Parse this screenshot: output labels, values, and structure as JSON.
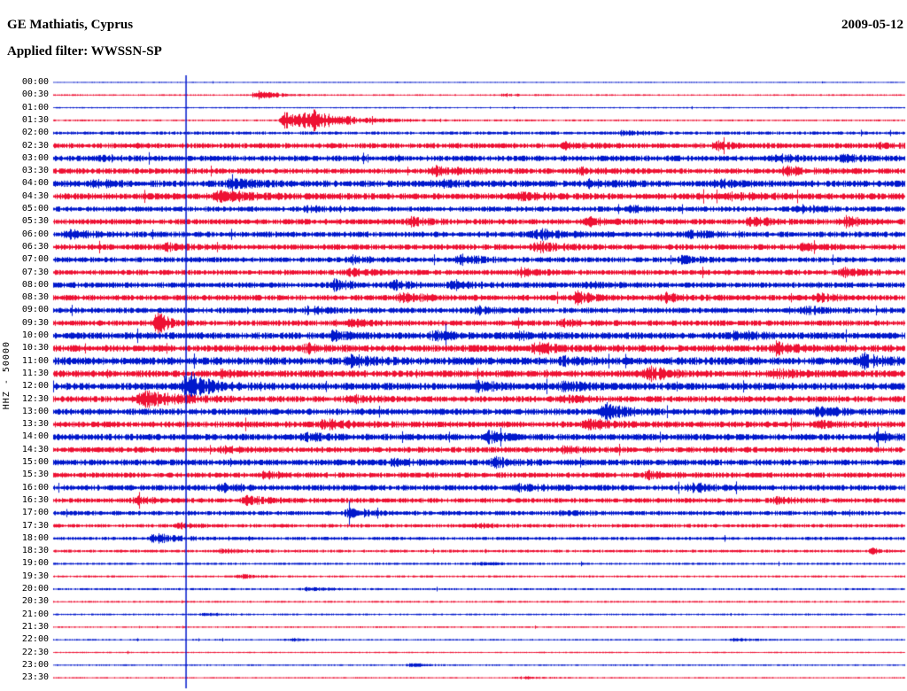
{
  "header": {
    "station_title": "GE Mathiatis, Cyprus",
    "date": "2009-05-12",
    "filter_label": "Applied filter: WWSSN-SP"
  },
  "axis": {
    "left_label": "HHZ - 50000"
  },
  "chart_data": {
    "type": "line",
    "subtype": "helicorder-seismogram",
    "title": "GE Mathiatis, Cyprus — 2009-05-12 — Applied filter: WWSSN-SP",
    "ylabel": "HHZ - 50000",
    "minutes_per_row": 30,
    "time_range": [
      "00:00",
      "23:30"
    ],
    "grid": false,
    "legend": "none",
    "colors": {
      "blue": "#0018cc",
      "red": "#ee1133",
      "marker": "#0018cc",
      "text": "#000000"
    },
    "vertical_marker_fraction": 0.156,
    "rows": [
      {
        "time": "00:00",
        "color": "blue",
        "noise": 0.6,
        "bursts": []
      },
      {
        "time": "00:30",
        "color": "red",
        "noise": 0.8,
        "bursts": [
          [
            0.24,
            5,
            0.012
          ],
          [
            0.53,
            1.5,
            0.01
          ]
        ]
      },
      {
        "time": "01:00",
        "color": "blue",
        "noise": 0.7,
        "bursts": []
      },
      {
        "time": "01:30",
        "color": "red",
        "noise": 0.9,
        "bursts": [
          [
            0.272,
            12,
            0.008
          ],
          [
            0.305,
            10,
            0.025
          ]
        ]
      },
      {
        "time": "02:00",
        "color": "blue",
        "noise": 1.6,
        "bursts": [
          [
            0.67,
            2.5,
            0.012
          ]
        ]
      },
      {
        "time": "02:30",
        "color": "red",
        "noise": 2.6,
        "bursts": [
          [
            0.6,
            3,
            0.012
          ],
          [
            0.78,
            3.5,
            0.012
          ],
          [
            0.97,
            2,
            0.01
          ]
        ]
      },
      {
        "time": "03:00",
        "color": "blue",
        "noise": 2.8,
        "bursts": [
          [
            0.06,
            2,
            0.012
          ],
          [
            0.85,
            3,
            0.012
          ],
          [
            0.93,
            3,
            0.012
          ]
        ]
      },
      {
        "time": "03:30",
        "color": "red",
        "noise": 2.8,
        "bursts": [
          [
            0.45,
            4,
            0.015
          ],
          [
            0.62,
            3,
            0.012
          ],
          [
            0.86,
            4,
            0.012
          ]
        ]
      },
      {
        "time": "04:00",
        "color": "blue",
        "noise": 3.2,
        "bursts": [
          [
            0.05,
            3,
            0.012
          ],
          [
            0.21,
            4,
            0.015
          ],
          [
            0.45,
            3,
            0.012
          ],
          [
            0.63,
            3,
            0.012
          ],
          [
            0.78,
            3,
            0.012
          ]
        ]
      },
      {
        "time": "04:30",
        "color": "red",
        "noise": 3.2,
        "bursts": [
          [
            0.2,
            5,
            0.02
          ],
          [
            0.55,
            3,
            0.012
          ],
          [
            0.8,
            4,
            0.012
          ]
        ]
      },
      {
        "time": "05:00",
        "color": "blue",
        "noise": 2.6,
        "bursts": [
          [
            0.3,
            2,
            0.012
          ],
          [
            0.68,
            3,
            0.012
          ],
          [
            0.88,
            3,
            0.012
          ]
        ]
      },
      {
        "time": "05:30",
        "color": "red",
        "noise": 2.8,
        "bursts": [
          [
            0.42,
            4,
            0.012
          ],
          [
            0.63,
            3,
            0.012
          ],
          [
            0.82,
            4,
            0.012
          ],
          [
            0.93,
            4,
            0.012
          ]
        ]
      },
      {
        "time": "06:00",
        "color": "blue",
        "noise": 2.8,
        "bursts": [
          [
            0.02,
            4,
            0.012
          ],
          [
            0.57,
            5,
            0.015
          ],
          [
            0.75,
            3,
            0.012
          ]
        ]
      },
      {
        "time": "06:30",
        "color": "red",
        "noise": 2.8,
        "bursts": [
          [
            0.13,
            3,
            0.012
          ],
          [
            0.57,
            4,
            0.015
          ],
          [
            0.88,
            3,
            0.012
          ]
        ]
      },
      {
        "time": "07:00",
        "color": "blue",
        "noise": 2.6,
        "bursts": [
          [
            0.35,
            5,
            0.008
          ],
          [
            0.48,
            4,
            0.012
          ],
          [
            0.74,
            3,
            0.012
          ]
        ]
      },
      {
        "time": "07:30",
        "color": "red",
        "noise": 2.6,
        "bursts": [
          [
            0.35,
            3,
            0.012
          ],
          [
            0.55,
            3,
            0.012
          ],
          [
            0.93,
            4,
            0.012
          ]
        ]
      },
      {
        "time": "08:00",
        "color": "blue",
        "noise": 2.8,
        "bursts": [
          [
            0.33,
            6,
            0.008
          ],
          [
            0.4,
            4,
            0.012
          ],
          [
            0.47,
            4,
            0.012
          ],
          [
            0.63,
            3,
            0.012
          ]
        ]
      },
      {
        "time": "08:30",
        "color": "red",
        "noise": 2.8,
        "bursts": [
          [
            0.41,
            5,
            0.012
          ],
          [
            0.615,
            7,
            0.008
          ],
          [
            0.72,
            4,
            0.012
          ],
          [
            0.9,
            3,
            0.012
          ]
        ]
      },
      {
        "time": "09:00",
        "color": "blue",
        "noise": 2.8,
        "bursts": [
          [
            0.3,
            3,
            0.012
          ],
          [
            0.5,
            3,
            0.012
          ],
          [
            0.88,
            4,
            0.012
          ]
        ]
      },
      {
        "time": "09:30",
        "color": "red",
        "noise": 2.8,
        "bursts": [
          [
            0.122,
            13,
            0.006
          ],
          [
            0.35,
            3,
            0.012
          ],
          [
            0.6,
            3,
            0.012
          ]
        ]
      },
      {
        "time": "10:00",
        "color": "blue",
        "noise": 3.4,
        "bursts": [
          [
            0.33,
            4,
            0.012
          ],
          [
            0.45,
            4,
            0.012
          ],
          [
            0.55,
            3,
            0.012
          ],
          [
            0.8,
            4,
            0.012
          ]
        ]
      },
      {
        "time": "10:30",
        "color": "red",
        "noise": 3.4,
        "bursts": [
          [
            0.3,
            3,
            0.012
          ],
          [
            0.57,
            5,
            0.012
          ],
          [
            0.85,
            5,
            0.012
          ]
        ]
      },
      {
        "time": "11:00",
        "color": "blue",
        "noise": 3.8,
        "bursts": [
          [
            0.35,
            5,
            0.012
          ],
          [
            0.6,
            3,
            0.012
          ],
          [
            0.95,
            6,
            0.012
          ]
        ]
      },
      {
        "time": "11:30",
        "color": "red",
        "noise": 3.4,
        "bursts": [
          [
            0.2,
            3,
            0.012
          ],
          [
            0.7,
            6,
            0.012
          ],
          [
            0.85,
            3,
            0.012
          ]
        ]
      },
      {
        "time": "12:00",
        "color": "blue",
        "noise": 3.6,
        "bursts": [
          [
            0.158,
            14,
            0.012
          ],
          [
            0.5,
            4,
            0.012
          ],
          [
            0.6,
            4,
            0.012
          ]
        ]
      },
      {
        "time": "12:30",
        "color": "red",
        "noise": 3.0,
        "bursts": [
          [
            0.11,
            7,
            0.02
          ],
          [
            0.35,
            3,
            0.012
          ],
          [
            0.6,
            3,
            0.012
          ]
        ]
      },
      {
        "time": "13:00",
        "color": "blue",
        "noise": 3.2,
        "bursts": [
          [
            0.65,
            8,
            0.012
          ],
          [
            0.9,
            4,
            0.012
          ]
        ]
      },
      {
        "time": "13:30",
        "color": "red",
        "noise": 3.0,
        "bursts": [
          [
            0.32,
            5,
            0.012
          ],
          [
            0.63,
            5,
            0.012
          ],
          [
            0.9,
            3,
            0.012
          ]
        ]
      },
      {
        "time": "14:00",
        "color": "blue",
        "noise": 3.2,
        "bursts": [
          [
            0.3,
            3,
            0.012
          ],
          [
            0.51,
            8,
            0.006
          ],
          [
            0.97,
            4,
            0.012
          ]
        ]
      },
      {
        "time": "14:30",
        "color": "red",
        "noise": 2.8,
        "bursts": [
          [
            0.2,
            2,
            0.012
          ],
          [
            0.6,
            3,
            0.012
          ]
        ]
      },
      {
        "time": "15:00",
        "color": "blue",
        "noise": 3.0,
        "bursts": [
          [
            0.4,
            3,
            0.012
          ],
          [
            0.52,
            4,
            0.012
          ]
        ]
      },
      {
        "time": "15:30",
        "color": "red",
        "noise": 2.6,
        "bursts": [
          [
            0.25,
            3,
            0.012
          ],
          [
            0.7,
            3,
            0.012
          ]
        ]
      },
      {
        "time": "16:00",
        "color": "blue",
        "noise": 2.8,
        "bursts": [
          [
            0.2,
            4,
            0.012
          ],
          [
            0.55,
            3,
            0.012
          ],
          [
            0.75,
            4,
            0.012
          ]
        ]
      },
      {
        "time": "16:30",
        "color": "red",
        "noise": 2.4,
        "bursts": [
          [
            0.1,
            3,
            0.012
          ],
          [
            0.23,
            4,
            0.012
          ],
          [
            0.85,
            3,
            0.012
          ]
        ]
      },
      {
        "time": "17:00",
        "color": "blue",
        "noise": 2.2,
        "bursts": [
          [
            0.35,
            5,
            0.012
          ],
          [
            0.6,
            2,
            0.012
          ]
        ]
      },
      {
        "time": "17:30",
        "color": "red",
        "noise": 1.8,
        "bursts": [
          [
            0.15,
            2,
            0.012
          ],
          [
            0.5,
            2,
            0.012
          ]
        ]
      },
      {
        "time": "18:00",
        "color": "blue",
        "noise": 1.6,
        "bursts": [
          [
            0.12,
            5,
            0.015
          ]
        ]
      },
      {
        "time": "18:30",
        "color": "red",
        "noise": 1.4,
        "bursts": [
          [
            0.2,
            2,
            0.012
          ],
          [
            0.96,
            4,
            0.004
          ]
        ]
      },
      {
        "time": "19:00",
        "color": "blue",
        "noise": 1.1,
        "bursts": [
          [
            0.5,
            1.5,
            0.012
          ]
        ]
      },
      {
        "time": "19:30",
        "color": "red",
        "noise": 1.0,
        "bursts": [
          [
            0.22,
            2.5,
            0.01
          ]
        ]
      },
      {
        "time": "20:00",
        "color": "blue",
        "noise": 1.0,
        "bursts": [
          [
            0.3,
            2,
            0.012
          ]
        ]
      },
      {
        "time": "20:30",
        "color": "red",
        "noise": 0.9,
        "bursts": []
      },
      {
        "time": "21:00",
        "color": "blue",
        "noise": 0.9,
        "bursts": [
          [
            0.18,
            1.5,
            0.012
          ]
        ]
      },
      {
        "time": "21:30",
        "color": "red",
        "noise": 0.8,
        "bursts": []
      },
      {
        "time": "22:00",
        "color": "blue",
        "noise": 0.8,
        "bursts": [
          [
            0.28,
            1.5,
            0.012
          ],
          [
            0.8,
            1.5,
            0.012
          ]
        ]
      },
      {
        "time": "22:30",
        "color": "red",
        "noise": 0.7,
        "bursts": []
      },
      {
        "time": "23:00",
        "color": "blue",
        "noise": 0.8,
        "bursts": [
          [
            0.42,
            2.5,
            0.008
          ]
        ]
      },
      {
        "time": "23:30",
        "color": "red",
        "noise": 0.7,
        "bursts": [
          [
            0.55,
            1.5,
            0.012
          ]
        ]
      }
    ]
  }
}
